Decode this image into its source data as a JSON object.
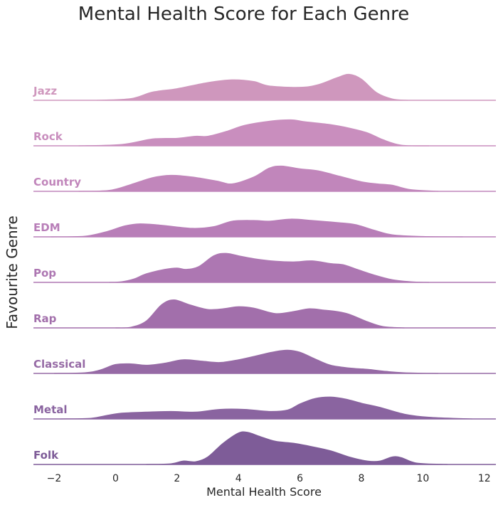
{
  "chart_data": {
    "type": "area",
    "subtype": "ridgeline",
    "title": "Mental Health Score for Each Genre",
    "xlabel": "Mental Health Score",
    "ylabel": "Favourite Genre",
    "xlim": [
      -2.6,
      12.4
    ],
    "x_ticks": [
      -2,
      0,
      2,
      4,
      6,
      8,
      10,
      12
    ],
    "x_tick_labels": [
      "−2",
      "0",
      "2",
      "4",
      "6",
      "8",
      "10",
      "12"
    ],
    "grid": false,
    "legend": "none",
    "ridges": [
      {
        "genre": "Jazz",
        "color": "#cf97bd",
        "range": [
          -0.6,
          12.4
        ],
        "points": [
          [
            -0.6,
            0
          ],
          [
            0.5,
            0.05
          ],
          [
            1.2,
            0.24
          ],
          [
            2.0,
            0.34
          ],
          [
            3.0,
            0.52
          ],
          [
            3.8,
            0.6
          ],
          [
            4.5,
            0.55
          ],
          [
            5.0,
            0.42
          ],
          [
            6.0,
            0.38
          ],
          [
            6.6,
            0.46
          ],
          [
            7.2,
            0.66
          ],
          [
            7.6,
            0.76
          ],
          [
            8.0,
            0.62
          ],
          [
            8.5,
            0.22
          ],
          [
            9.0,
            0.04
          ],
          [
            9.5,
            0
          ]
        ]
      },
      {
        "genre": "Rock",
        "color": "#c98ebe",
        "range": [
          -1.2,
          12.4
        ],
        "points": [
          [
            -1.2,
            0
          ],
          [
            0.2,
            0.04
          ],
          [
            1.2,
            0.2
          ],
          [
            2.0,
            0.22
          ],
          [
            2.6,
            0.28
          ],
          [
            3.0,
            0.28
          ],
          [
            3.6,
            0.42
          ],
          [
            4.2,
            0.6
          ],
          [
            5.0,
            0.72
          ],
          [
            5.7,
            0.76
          ],
          [
            6.2,
            0.7
          ],
          [
            7.0,
            0.62
          ],
          [
            7.6,
            0.52
          ],
          [
            8.2,
            0.38
          ],
          [
            8.7,
            0.18
          ],
          [
            9.3,
            0.02
          ],
          [
            10.2,
            0
          ]
        ]
      },
      {
        "genre": "Country",
        "color": "#c186bb",
        "range": [
          -1.2,
          12.4
        ],
        "points": [
          [
            -1.2,
            0
          ],
          [
            -0.2,
            0.03
          ],
          [
            0.5,
            0.2
          ],
          [
            1.2,
            0.4
          ],
          [
            1.8,
            0.47
          ],
          [
            2.5,
            0.42
          ],
          [
            3.3,
            0.3
          ],
          [
            3.8,
            0.22
          ],
          [
            4.5,
            0.42
          ],
          [
            5.0,
            0.68
          ],
          [
            5.4,
            0.74
          ],
          [
            6.0,
            0.66
          ],
          [
            6.6,
            0.6
          ],
          [
            7.3,
            0.44
          ],
          [
            8.0,
            0.28
          ],
          [
            8.5,
            0.22
          ],
          [
            9.0,
            0.18
          ],
          [
            9.6,
            0.05
          ],
          [
            10.5,
            0
          ]
        ]
      },
      {
        "genre": "EDM",
        "color": "#b87eb8",
        "range": [
          -2.1,
          11.3
        ],
        "points": [
          [
            -2.1,
            0
          ],
          [
            -1.0,
            0.02
          ],
          [
            -0.3,
            0.15
          ],
          [
            0.3,
            0.32
          ],
          [
            0.8,
            0.38
          ],
          [
            1.5,
            0.34
          ],
          [
            2.5,
            0.25
          ],
          [
            3.2,
            0.3
          ],
          [
            3.8,
            0.46
          ],
          [
            4.5,
            0.48
          ],
          [
            5.0,
            0.46
          ],
          [
            5.7,
            0.52
          ],
          [
            6.4,
            0.48
          ],
          [
            7.2,
            0.42
          ],
          [
            7.8,
            0.36
          ],
          [
            8.4,
            0.2
          ],
          [
            9.0,
            0.06
          ],
          [
            10.0,
            0.01
          ],
          [
            11.3,
            0
          ]
        ]
      },
      {
        "genre": "Pop",
        "color": "#ad77b2",
        "range": [
          -0.2,
          10.2
        ],
        "points": [
          [
            -0.2,
            0
          ],
          [
            0.2,
            0.02
          ],
          [
            0.6,
            0.1
          ],
          [
            1.0,
            0.25
          ],
          [
            1.6,
            0.38
          ],
          [
            2.0,
            0.42
          ],
          [
            2.3,
            0.38
          ],
          [
            2.7,
            0.46
          ],
          [
            3.2,
            0.78
          ],
          [
            3.6,
            0.85
          ],
          [
            4.1,
            0.76
          ],
          [
            4.6,
            0.68
          ],
          [
            5.2,
            0.62
          ],
          [
            5.8,
            0.6
          ],
          [
            6.4,
            0.63
          ],
          [
            7.0,
            0.55
          ],
          [
            7.4,
            0.52
          ],
          [
            7.8,
            0.4
          ],
          [
            8.4,
            0.22
          ],
          [
            9.0,
            0.08
          ],
          [
            9.6,
            0.02
          ],
          [
            10.2,
            0
          ]
        ]
      },
      {
        "genre": "Rap",
        "color": "#a26fab",
        "range": [
          0.0,
          9.4
        ],
        "points": [
          [
            0.0,
            0
          ],
          [
            0.5,
            0.02
          ],
          [
            1.0,
            0.2
          ],
          [
            1.5,
            0.68
          ],
          [
            1.9,
            0.82
          ],
          [
            2.4,
            0.68
          ],
          [
            3.0,
            0.54
          ],
          [
            3.5,
            0.56
          ],
          [
            4.0,
            0.62
          ],
          [
            4.5,
            0.58
          ],
          [
            5.2,
            0.42
          ],
          [
            5.8,
            0.48
          ],
          [
            6.3,
            0.56
          ],
          [
            6.8,
            0.52
          ],
          [
            7.2,
            0.48
          ],
          [
            7.6,
            0.4
          ],
          [
            8.2,
            0.18
          ],
          [
            8.7,
            0.04
          ],
          [
            9.4,
            0
          ]
        ]
      },
      {
        "genre": "Classical",
        "color": "#966aa5",
        "range": [
          -2.0,
          10.5
        ],
        "points": [
          [
            -2.0,
            0
          ],
          [
            -1.0,
            0.02
          ],
          [
            -0.5,
            0.1
          ],
          [
            0.0,
            0.26
          ],
          [
            0.5,
            0.28
          ],
          [
            1.0,
            0.24
          ],
          [
            1.6,
            0.3
          ],
          [
            2.2,
            0.4
          ],
          [
            2.8,
            0.36
          ],
          [
            3.4,
            0.32
          ],
          [
            4.0,
            0.4
          ],
          [
            4.6,
            0.52
          ],
          [
            5.2,
            0.64
          ],
          [
            5.6,
            0.68
          ],
          [
            6.0,
            0.62
          ],
          [
            6.5,
            0.42
          ],
          [
            7.0,
            0.24
          ],
          [
            7.6,
            0.16
          ],
          [
            8.2,
            0.12
          ],
          [
            8.8,
            0.06
          ],
          [
            9.4,
            0.02
          ],
          [
            10.5,
            0
          ]
        ]
      },
      {
        "genre": "Metal",
        "color": "#8a64a0",
        "range": [
          -1.8,
          11.6
        ],
        "points": [
          [
            -1.8,
            0
          ],
          [
            -0.8,
            0.02
          ],
          [
            -0.3,
            0.1
          ],
          [
            0.2,
            0.17
          ],
          [
            1.0,
            0.2
          ],
          [
            1.8,
            0.22
          ],
          [
            2.6,
            0.2
          ],
          [
            3.4,
            0.28
          ],
          [
            4.2,
            0.28
          ],
          [
            5.0,
            0.22
          ],
          [
            5.6,
            0.26
          ],
          [
            6.0,
            0.44
          ],
          [
            6.5,
            0.6
          ],
          [
            7.0,
            0.64
          ],
          [
            7.5,
            0.58
          ],
          [
            8.0,
            0.46
          ],
          [
            8.6,
            0.34
          ],
          [
            9.4,
            0.14
          ],
          [
            10.2,
            0.05
          ],
          [
            11.6,
            0
          ]
        ]
      },
      {
        "genre": "Folk",
        "color": "#7e5c98",
        "range": [
          1.0,
          10.8
        ],
        "points": [
          [
            1.0,
            0
          ],
          [
            1.8,
            0.02
          ],
          [
            2.2,
            0.1
          ],
          [
            2.6,
            0.08
          ],
          [
            3.0,
            0.22
          ],
          [
            3.5,
            0.62
          ],
          [
            4.0,
            0.92
          ],
          [
            4.3,
            0.94
          ],
          [
            4.7,
            0.82
          ],
          [
            5.2,
            0.68
          ],
          [
            5.8,
            0.62
          ],
          [
            6.4,
            0.52
          ],
          [
            7.0,
            0.4
          ],
          [
            7.6,
            0.22
          ],
          [
            8.2,
            0.1
          ],
          [
            8.6,
            0.1
          ],
          [
            9.0,
            0.22
          ],
          [
            9.3,
            0.2
          ],
          [
            9.8,
            0.04
          ],
          [
            10.8,
            0
          ]
        ]
      }
    ]
  }
}
